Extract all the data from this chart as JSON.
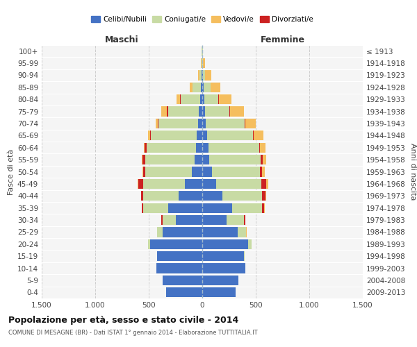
{
  "age_groups": [
    "0-4",
    "5-9",
    "10-14",
    "15-19",
    "20-24",
    "25-29",
    "30-34",
    "35-39",
    "40-44",
    "45-49",
    "50-54",
    "55-59",
    "60-64",
    "65-69",
    "70-74",
    "75-79",
    "80-84",
    "85-89",
    "90-94",
    "95-99",
    "100+"
  ],
  "birth_years": [
    "2009-2013",
    "2004-2008",
    "1999-2003",
    "1994-1998",
    "1989-1993",
    "1984-1988",
    "1979-1983",
    "1974-1978",
    "1969-1973",
    "1964-1968",
    "1959-1963",
    "1954-1958",
    "1949-1953",
    "1944-1948",
    "1939-1943",
    "1934-1938",
    "1929-1933",
    "1924-1928",
    "1919-1923",
    "1914-1918",
    "≤ 1913"
  ],
  "males": {
    "celibi": [
      340,
      370,
      430,
      420,
      490,
      370,
      250,
      320,
      220,
      160,
      100,
      70,
      60,
      50,
      40,
      30,
      20,
      10,
      5,
      2,
      2
    ],
    "coniugati": [
      0,
      0,
      0,
      2,
      15,
      50,
      120,
      230,
      330,
      390,
      430,
      460,
      460,
      430,
      370,
      290,
      180,
      80,
      20,
      5,
      2
    ],
    "vedovi": [
      0,
      0,
      0,
      0,
      1,
      1,
      1,
      2,
      2,
      3,
      5,
      5,
      5,
      15,
      20,
      50,
      35,
      25,
      15,
      3,
      1
    ],
    "divorziati": [
      0,
      0,
      0,
      0,
      2,
      2,
      10,
      15,
      20,
      50,
      25,
      30,
      20,
      10,
      5,
      10,
      5,
      0,
      0,
      0,
      0
    ]
  },
  "females": {
    "nubili": [
      310,
      340,
      400,
      390,
      430,
      330,
      230,
      280,
      190,
      130,
      90,
      65,
      60,
      45,
      35,
      25,
      20,
      15,
      5,
      3,
      2
    ],
    "coniugate": [
      0,
      0,
      0,
      5,
      30,
      80,
      160,
      280,
      370,
      420,
      450,
      480,
      470,
      430,
      360,
      230,
      130,
      65,
      20,
      5,
      2
    ],
    "vedove": [
      0,
      0,
      0,
      0,
      2,
      2,
      3,
      5,
      10,
      15,
      25,
      30,
      50,
      90,
      100,
      130,
      120,
      90,
      60,
      20,
      2
    ],
    "divorziate": [
      0,
      0,
      0,
      0,
      2,
      2,
      10,
      20,
      30,
      50,
      20,
      20,
      10,
      5,
      5,
      5,
      3,
      0,
      0,
      0,
      0
    ]
  },
  "colors": {
    "celibi": "#4472c4",
    "coniugati": "#c8dba4",
    "vedovi": "#f5be5e",
    "divorziati": "#cc2222"
  },
  "xlim": 1500,
  "xtick_labels": [
    "1.500",
    "1.000",
    "500",
    "0",
    "500",
    "1.000",
    "1.500"
  ],
  "title": "Popolazione per età, sesso e stato civile - 2014",
  "subtitle": "COMUNE DI MESAGNE (BR) - Dati ISTAT 1° gennaio 2014 - Elaborazione TUTTITALIA.IT",
  "ylabel_left": "Fasce di età",
  "ylabel_right": "Anni di nascita",
  "label_maschi": "Maschi",
  "label_femmine": "Femmine",
  "bg_color": "#f5f5f5",
  "grid_color": "#cccccc"
}
